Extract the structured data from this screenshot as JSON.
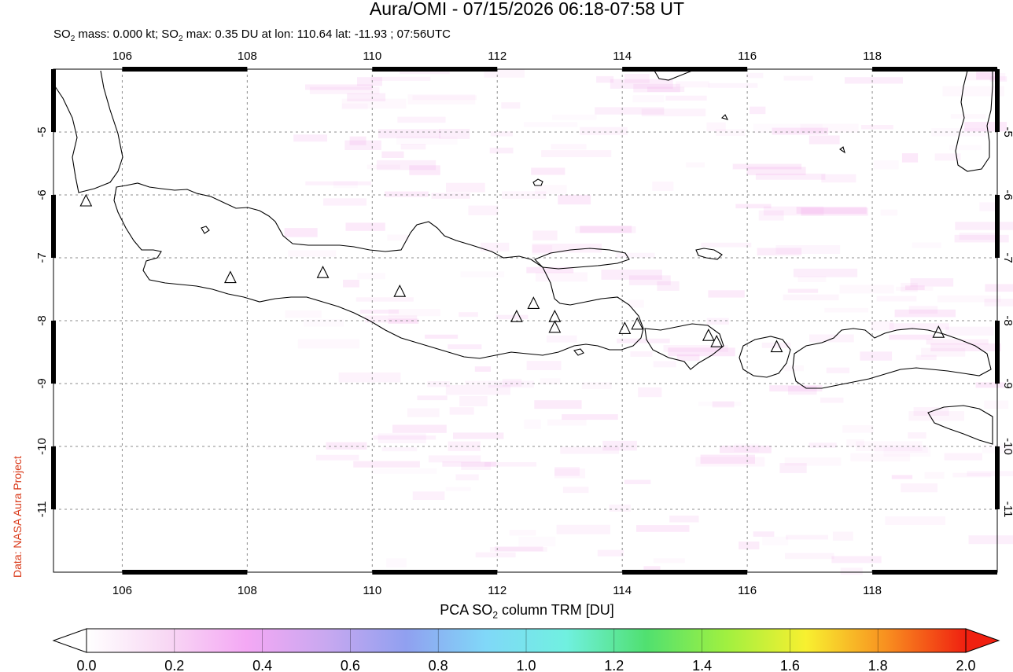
{
  "header": {
    "title": "Aura/OMI - 07/15/2026 06:18-07:58 UT",
    "subtitle_parts": [
      "SO",
      "2",
      " mass: 0.000 kt; SO",
      "2",
      " max: 0.35 DU at lon: 110.64 lat: -11.93 ; 07:56UTC"
    ]
  },
  "credit": "Data: NASA Aura Project",
  "map": {
    "lon_range": [
      104.9,
      120.0
    ],
    "lat_range": [
      -12.0,
      -4.0
    ],
    "lon_ticks": [
      "106",
      "108",
      "110",
      "112",
      "114",
      "116",
      "118"
    ],
    "lat_ticks": [
      "-5",
      "-6",
      "-7",
      "-8",
      "-9",
      "-10",
      "-11"
    ],
    "volcano_marker": "triangle-icon",
    "volcanoes": [
      [
        105.42,
        -6.1
      ],
      [
        107.73,
        -7.32
      ],
      [
        109.21,
        -7.24
      ],
      [
        110.44,
        -7.54
      ],
      [
        112.31,
        -7.94
      ],
      [
        112.58,
        -7.73
      ],
      [
        112.92,
        -7.94
      ],
      [
        112.92,
        -8.11
      ],
      [
        114.04,
        -8.13
      ],
      [
        114.24,
        -8.06
      ],
      [
        115.38,
        -8.24
      ],
      [
        115.51,
        -8.34
      ],
      [
        116.47,
        -8.42
      ],
      [
        119.06,
        -8.19
      ]
    ],
    "coast_color": "#000000",
    "grid_color": "#8c8c8c"
  },
  "colorbar": {
    "title_parts": [
      "PCA SO",
      "2",
      " column TRM [DU]"
    ],
    "labels": [
      "0.0",
      "0.2",
      "0.4",
      "0.6",
      "0.8",
      "1.0",
      "1.2",
      "1.4",
      "1.6",
      "1.8",
      "2.0"
    ],
    "range": [
      0.0,
      2.0
    ],
    "colors": [
      "#ffffff",
      "#f8d8f4",
      "#f4a8f4",
      "#c8a8f0",
      "#90a0f0",
      "#80d8f8",
      "#70f0e0",
      "#50e070",
      "#a0f040",
      "#f8f030",
      "#f89020",
      "#f02010"
    ]
  }
}
